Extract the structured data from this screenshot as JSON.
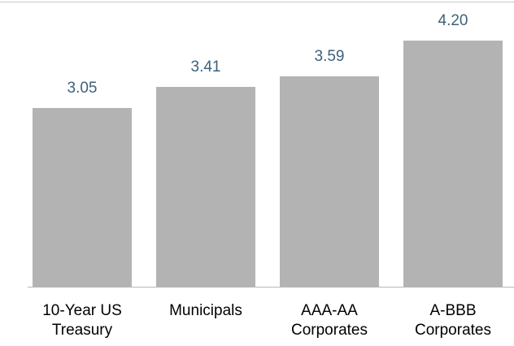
{
  "chart_data": {
    "type": "bar",
    "categories": [
      [
        "10-Year US",
        "Treasury"
      ],
      [
        "Municipals"
      ],
      [
        "AAA-AA",
        "Corporates"
      ],
      [
        "A-BBB",
        "Corporates"
      ]
    ],
    "values": [
      3.05,
      3.41,
      3.59,
      4.2
    ],
    "value_labels": [
      "3.05",
      "3.41",
      "3.59",
      "4.20"
    ],
    "title": "",
    "xlabel": "",
    "ylabel": "",
    "ylim": [
      0,
      4.9
    ],
    "grid": false,
    "bar_color": "#b3b3b3",
    "label_color": "#3d6179"
  }
}
